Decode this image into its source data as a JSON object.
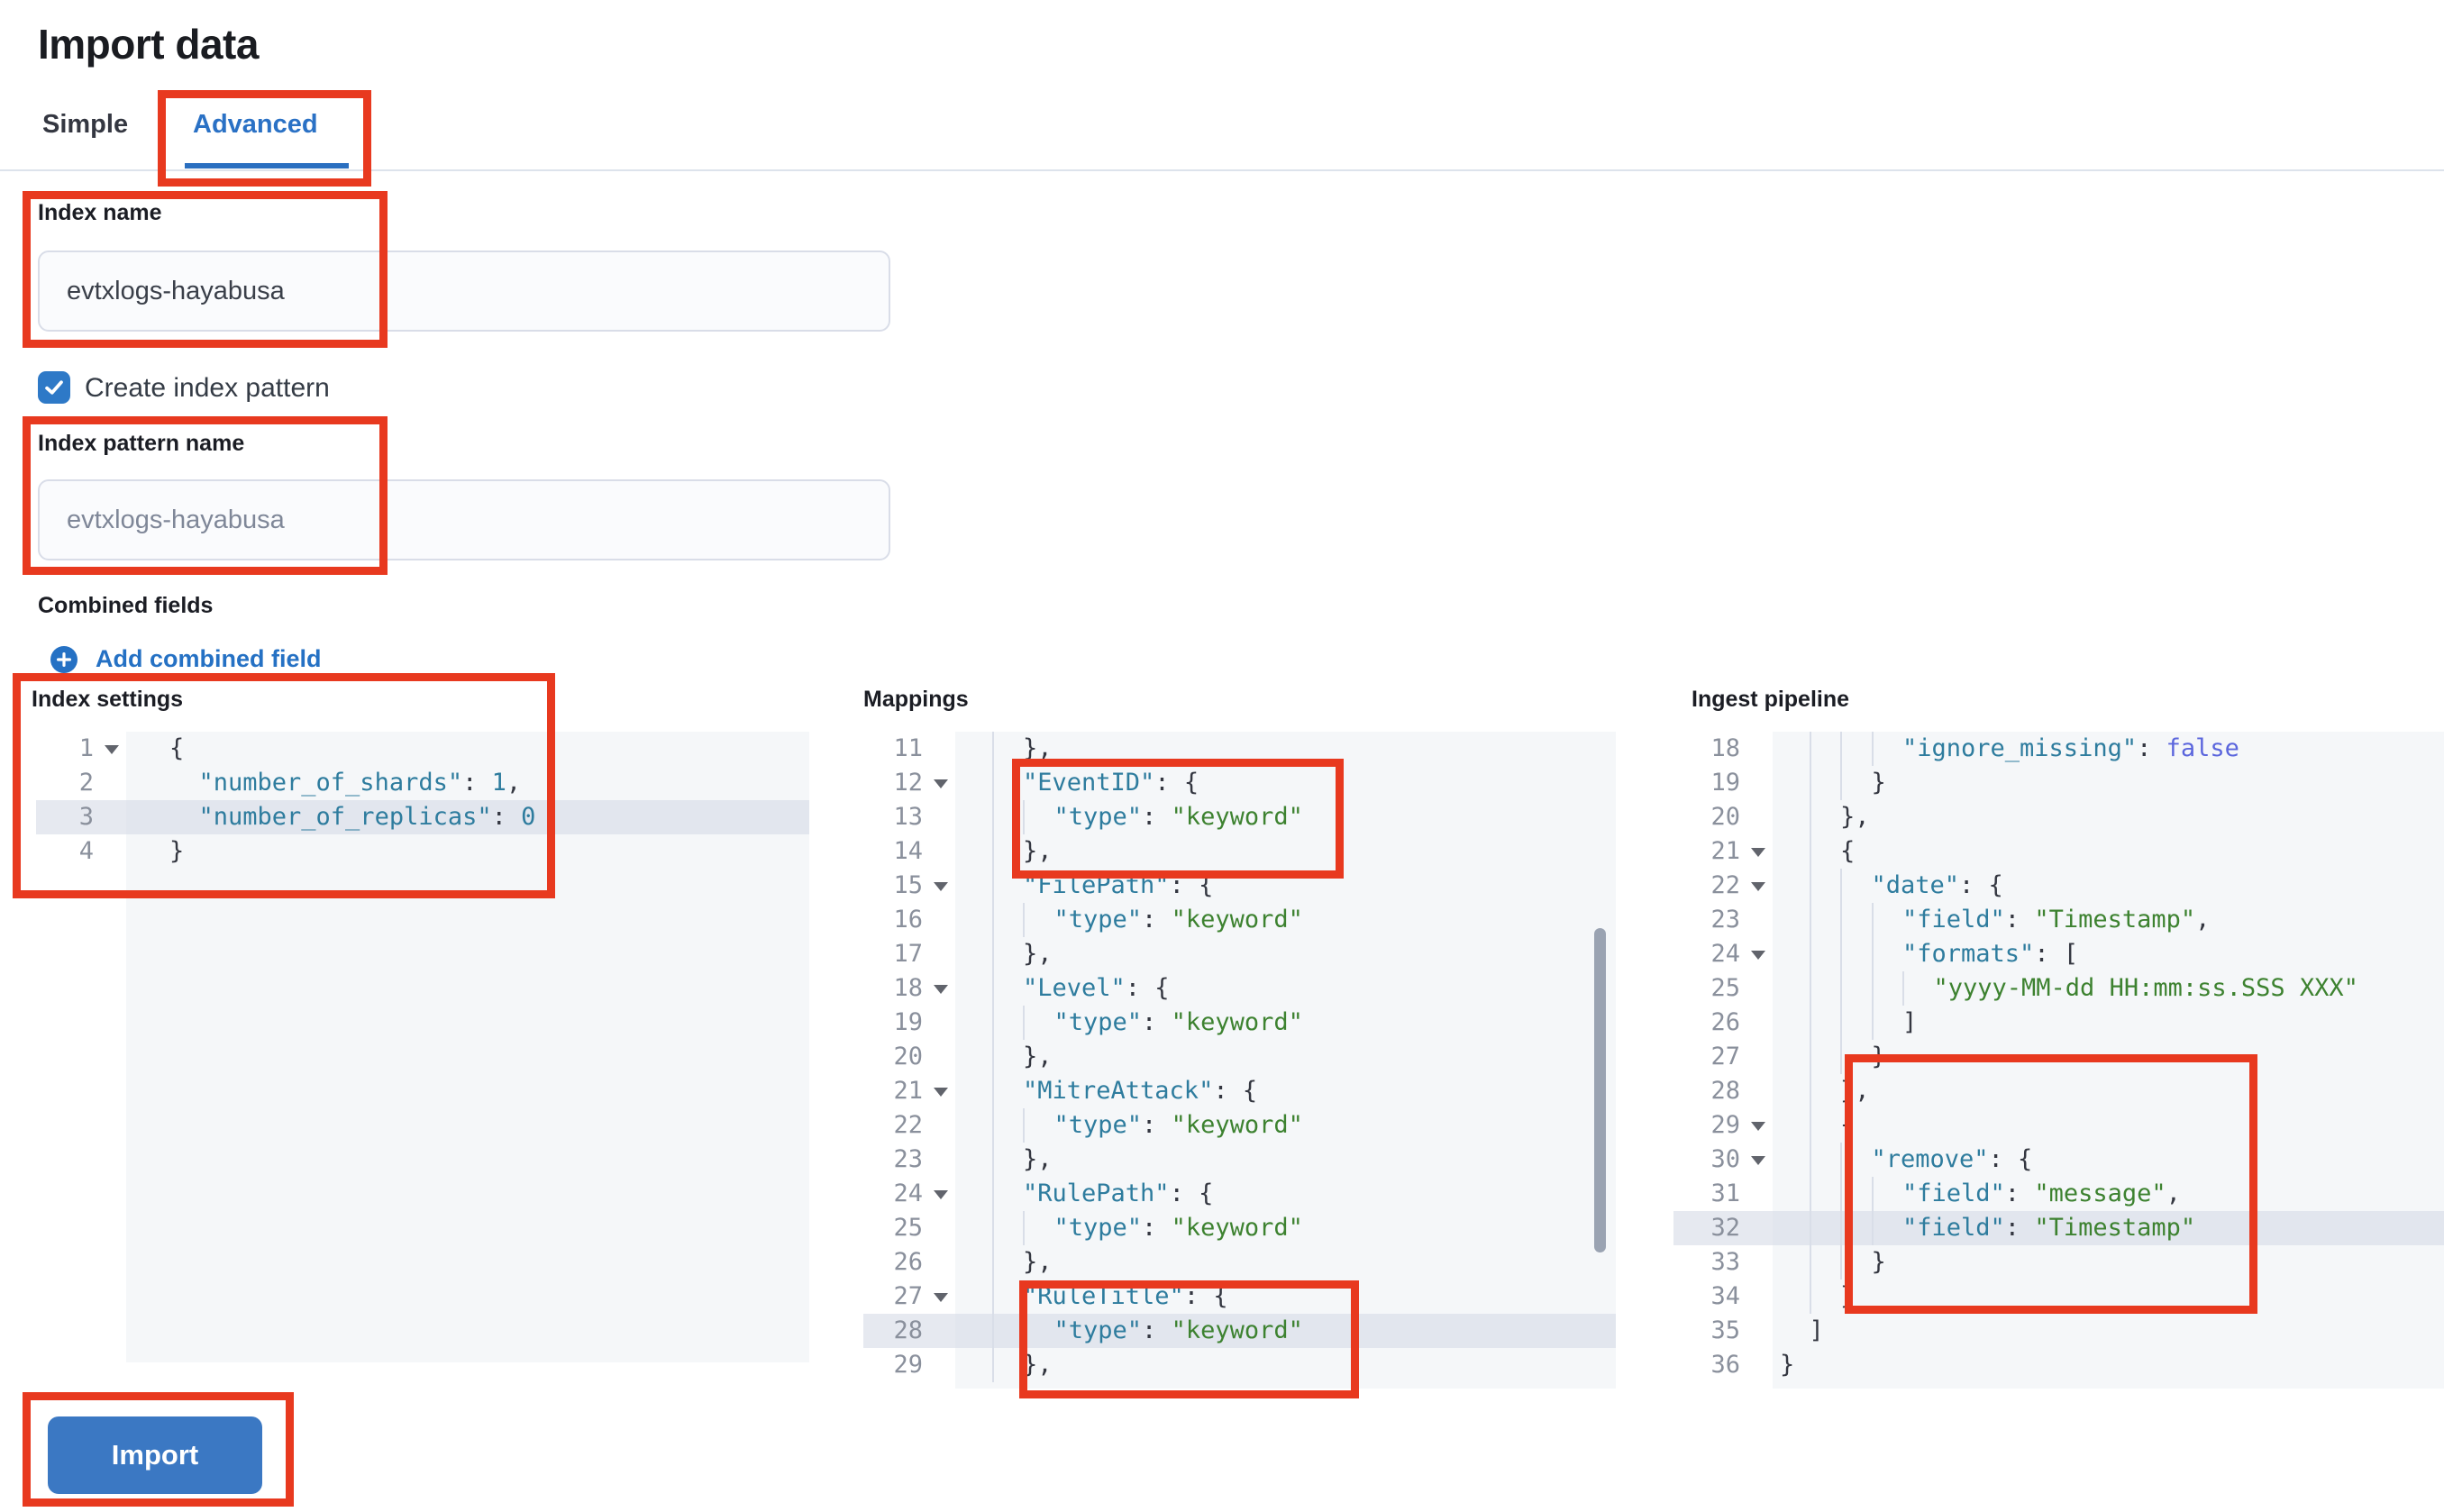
{
  "page": {
    "title": "Import data"
  },
  "tabs": [
    {
      "label": "Simple",
      "active": false
    },
    {
      "label": "Advanced",
      "active": true
    }
  ],
  "form": {
    "index_name": {
      "label": "Index name",
      "value": "evtxlogs-hayabusa"
    },
    "create_index_pattern": {
      "label": "Create index pattern",
      "checked": true
    },
    "index_pattern_name": {
      "label": "Index pattern name",
      "placeholder": "evtxlogs-hayabusa"
    },
    "combined_fields": {
      "label": "Combined fields",
      "add_link_label": "Add combined field"
    }
  },
  "import_button": {
    "label": "Import"
  },
  "colors": {
    "annotation_red": "#e8391f",
    "primary_blue": "#2a71c5",
    "button_blue": "#3b78c3",
    "checkbox_blue": "#2e79c7",
    "editor_bg": "#f5f7f9",
    "active_line": "#e2e6ee",
    "code_key": "#2e7c9e",
    "code_string": "#3d8230",
    "code_constant": "#5b66dd"
  },
  "editors": {
    "index_settings": {
      "label": "Index settings",
      "active_line": 3,
      "lines": [
        {
          "n": 1,
          "fold": true,
          "indent": 0,
          "tokens": [
            [
              "p",
              "{"
            ]
          ]
        },
        {
          "n": 2,
          "fold": false,
          "indent": 2,
          "tokens": [
            [
              "k",
              "\"number_of_shards\""
            ],
            [
              "p",
              ": "
            ],
            [
              "m",
              "1"
            ],
            [
              "p",
              ","
            ]
          ]
        },
        {
          "n": 3,
          "fold": false,
          "indent": 2,
          "tokens": [
            [
              "k",
              "\"number_of_replicas\""
            ],
            [
              "p",
              ": "
            ],
            [
              "m",
              "0"
            ]
          ]
        },
        {
          "n": 4,
          "fold": false,
          "indent": 0,
          "tokens": [
            [
              "p",
              "}"
            ]
          ]
        }
      ]
    },
    "mappings": {
      "label": "Mappings",
      "active_line": 28,
      "lines": [
        {
          "n": 11,
          "fold": false,
          "indent": 4,
          "tokens": [
            [
              "p",
              "},"
            ]
          ]
        },
        {
          "n": 12,
          "fold": true,
          "indent": 4,
          "tokens": [
            [
              "k",
              "\"EventID\""
            ],
            [
              "p",
              ": {"
            ]
          ]
        },
        {
          "n": 13,
          "fold": false,
          "indent": 6,
          "tokens": [
            [
              "k",
              "\"type\""
            ],
            [
              "p",
              ": "
            ],
            [
              "s",
              "\"keyword\""
            ]
          ]
        },
        {
          "n": 14,
          "fold": false,
          "indent": 4,
          "tokens": [
            [
              "p",
              "},"
            ]
          ]
        },
        {
          "n": 15,
          "fold": true,
          "indent": 4,
          "tokens": [
            [
              "k",
              "\"FilePath\""
            ],
            [
              "p",
              ": {"
            ]
          ]
        },
        {
          "n": 16,
          "fold": false,
          "indent": 6,
          "tokens": [
            [
              "k",
              "\"type\""
            ],
            [
              "p",
              ": "
            ],
            [
              "s",
              "\"keyword\""
            ]
          ]
        },
        {
          "n": 17,
          "fold": false,
          "indent": 4,
          "tokens": [
            [
              "p",
              "},"
            ]
          ]
        },
        {
          "n": 18,
          "fold": true,
          "indent": 4,
          "tokens": [
            [
              "k",
              "\"Level\""
            ],
            [
              "p",
              ": {"
            ]
          ]
        },
        {
          "n": 19,
          "fold": false,
          "indent": 6,
          "tokens": [
            [
              "k",
              "\"type\""
            ],
            [
              "p",
              ": "
            ],
            [
              "s",
              "\"keyword\""
            ]
          ]
        },
        {
          "n": 20,
          "fold": false,
          "indent": 4,
          "tokens": [
            [
              "p",
              "},"
            ]
          ]
        },
        {
          "n": 21,
          "fold": true,
          "indent": 4,
          "tokens": [
            [
              "k",
              "\"MitreAttack\""
            ],
            [
              "p",
              ": {"
            ]
          ]
        },
        {
          "n": 22,
          "fold": false,
          "indent": 6,
          "tokens": [
            [
              "k",
              "\"type\""
            ],
            [
              "p",
              ": "
            ],
            [
              "s",
              "\"keyword\""
            ]
          ]
        },
        {
          "n": 23,
          "fold": false,
          "indent": 4,
          "tokens": [
            [
              "p",
              "},"
            ]
          ]
        },
        {
          "n": 24,
          "fold": true,
          "indent": 4,
          "tokens": [
            [
              "k",
              "\"RulePath\""
            ],
            [
              "p",
              ": {"
            ]
          ]
        },
        {
          "n": 25,
          "fold": false,
          "indent": 6,
          "tokens": [
            [
              "k",
              "\"type\""
            ],
            [
              "p",
              ": "
            ],
            [
              "s",
              "\"keyword\""
            ]
          ]
        },
        {
          "n": 26,
          "fold": false,
          "indent": 4,
          "tokens": [
            [
              "p",
              "},"
            ]
          ]
        },
        {
          "n": 27,
          "fold": true,
          "indent": 4,
          "tokens": [
            [
              "k",
              "\"RuleTitle\""
            ],
            [
              "p",
              ": {"
            ]
          ]
        },
        {
          "n": 28,
          "fold": false,
          "indent": 6,
          "tokens": [
            [
              "k",
              "\"type\""
            ],
            [
              "p",
              ": "
            ],
            [
              "s",
              "\"keyword\""
            ]
          ]
        },
        {
          "n": 29,
          "fold": false,
          "indent": 4,
          "tokens": [
            [
              "p",
              "},"
            ]
          ]
        }
      ]
    },
    "ingest_pipeline": {
      "label": "Ingest pipeline",
      "active_line": 32,
      "lines": [
        {
          "n": 18,
          "fold": false,
          "indent": 8,
          "tokens": [
            [
              "k",
              "\"ignore_missing\""
            ],
            [
              "p",
              ": "
            ],
            [
              "b",
              "false"
            ]
          ]
        },
        {
          "n": 19,
          "fold": false,
          "indent": 6,
          "tokens": [
            [
              "p",
              "}"
            ]
          ]
        },
        {
          "n": 20,
          "fold": false,
          "indent": 4,
          "tokens": [
            [
              "p",
              "},"
            ]
          ]
        },
        {
          "n": 21,
          "fold": true,
          "indent": 4,
          "tokens": [
            [
              "p",
              "{"
            ]
          ]
        },
        {
          "n": 22,
          "fold": true,
          "indent": 6,
          "tokens": [
            [
              "k",
              "\"date\""
            ],
            [
              "p",
              ": {"
            ]
          ]
        },
        {
          "n": 23,
          "fold": false,
          "indent": 8,
          "tokens": [
            [
              "k",
              "\"field\""
            ],
            [
              "p",
              ": "
            ],
            [
              "s",
              "\"Timestamp\""
            ],
            [
              "p",
              ","
            ]
          ]
        },
        {
          "n": 24,
          "fold": true,
          "indent": 8,
          "tokens": [
            [
              "k",
              "\"formats\""
            ],
            [
              "p",
              ": ["
            ]
          ]
        },
        {
          "n": 25,
          "fold": false,
          "indent": 10,
          "tokens": [
            [
              "s",
              "\"yyyy-MM-dd HH:mm:ss.SSS XXX\""
            ]
          ]
        },
        {
          "n": 26,
          "fold": false,
          "indent": 8,
          "tokens": [
            [
              "p",
              "]"
            ]
          ]
        },
        {
          "n": 27,
          "fold": false,
          "indent": 6,
          "tokens": [
            [
              "p",
              "}"
            ]
          ]
        },
        {
          "n": 28,
          "fold": false,
          "indent": 4,
          "tokens": [
            [
              "p",
              "},"
            ]
          ]
        },
        {
          "n": 29,
          "fold": true,
          "indent": 4,
          "tokens": [
            [
              "p",
              "{"
            ]
          ]
        },
        {
          "n": 30,
          "fold": true,
          "indent": 6,
          "tokens": [
            [
              "k",
              "\"remove\""
            ],
            [
              "p",
              ": {"
            ]
          ]
        },
        {
          "n": 31,
          "fold": false,
          "indent": 8,
          "tokens": [
            [
              "k",
              "\"field\""
            ],
            [
              "p",
              ": "
            ],
            [
              "s",
              "\"message\""
            ],
            [
              "p",
              ","
            ]
          ]
        },
        {
          "n": 32,
          "fold": false,
          "indent": 8,
          "tokens": [
            [
              "k",
              "\"field\""
            ],
            [
              "p",
              ": "
            ],
            [
              "s",
              "\"Timestamp\""
            ]
          ]
        },
        {
          "n": 33,
          "fold": false,
          "indent": 6,
          "tokens": [
            [
              "p",
              "}"
            ]
          ]
        },
        {
          "n": 34,
          "fold": false,
          "indent": 4,
          "tokens": [
            [
              "p",
              "}"
            ]
          ]
        },
        {
          "n": 35,
          "fold": false,
          "indent": 2,
          "tokens": [
            [
              "p",
              "]"
            ]
          ]
        },
        {
          "n": 36,
          "fold": false,
          "indent": 0,
          "tokens": [
            [
              "p",
              "}"
            ]
          ]
        }
      ]
    }
  }
}
